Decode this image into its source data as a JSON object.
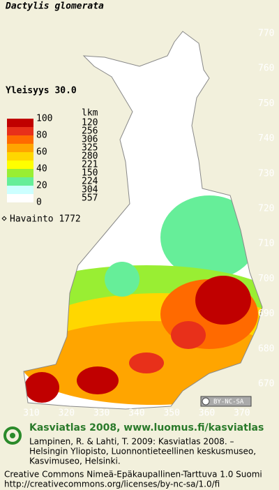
{
  "title": "Dactylis glomerata",
  "frequency": "Yleisyys  30.0",
  "legend": {
    "scale_labels": [
      "100",
      "80",
      "60",
      "40",
      "20",
      "0"
    ],
    "count_header": "lkm",
    "classes": [
      {
        "color": "#c00000",
        "count": "120"
      },
      {
        "color": "#e8301a",
        "count": "256"
      },
      {
        "color": "#ff6a00",
        "count": "306"
      },
      {
        "color": "#ffa500",
        "count": "325"
      },
      {
        "color": "#ffd700",
        "count": "280"
      },
      {
        "color": "#ffff00",
        "count": "221"
      },
      {
        "color": "#99ee33",
        "count": "150"
      },
      {
        "color": "#66ee99",
        "count": "224"
      },
      {
        "color": "#ccffff",
        "count": "304"
      },
      {
        "color": "#ffffff",
        "count": "557"
      }
    ],
    "observation": "Havainto 1772"
  },
  "grid": {
    "y_labels": [
      "770",
      "760",
      "750",
      "740",
      "730",
      "720",
      "710",
      "700",
      "690",
      "680",
      "670"
    ],
    "x_labels": [
      "310",
      "320",
      "330",
      "340",
      "350",
      "360",
      "370"
    ]
  },
  "license_badge": "BY-NC-SA",
  "footer": {
    "site": "Kasviatlas 2008, www.luomus.fi/kasviatlas",
    "reference": [
      "Lampinen, R. & Lahti, T. 2009: Kasviatlas 2008. –",
      "Helsingin Yliopisto, Luonnontieteellinen keskusmuseo,",
      "Kasvimuseo, Helsinki."
    ],
    "license": [
      "Creative Commons Nimeä-Epäkaupallinen-Tarttuva 1.0 Suomi",
      "http://creativecommons.org/licenses/by-nc-sa/1.0/fi"
    ]
  }
}
